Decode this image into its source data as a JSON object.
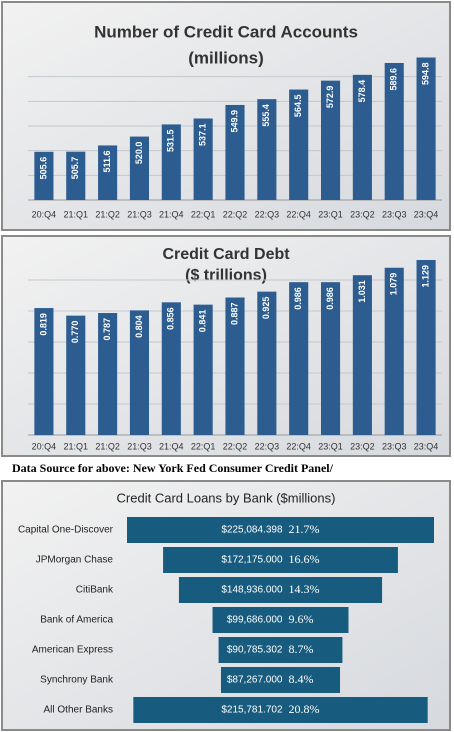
{
  "chart_data": [
    {
      "type": "bar",
      "title": "Number of Credit Card Accounts",
      "subtitle": "(millions)",
      "categories": [
        "20:Q4",
        "21:Q1",
        "21:Q2",
        "21:Q3",
        "21:Q4",
        "22:Q1",
        "22:Q2",
        "22:Q3",
        "22:Q4",
        "23:Q1",
        "23:Q2",
        "23:Q3",
        "23:Q4"
      ],
      "values": [
        505.6,
        505.7,
        511.6,
        520.0,
        531.5,
        537.1,
        549.9,
        555.4,
        564.5,
        572.9,
        578.4,
        589.6,
        594.8
      ],
      "value_labels": [
        "505.6",
        "505.7",
        "511.6",
        "520.0",
        "531.5",
        "537.1",
        "549.9",
        "555.4",
        "564.5",
        "572.9",
        "578.4",
        "589.6",
        "594.8"
      ],
      "color": "#2d5d90",
      "ylim": [
        460,
        600
      ]
    },
    {
      "type": "bar",
      "title": "Credit Card Debt",
      "subtitle": "($ trillions)",
      "categories": [
        "20:Q4",
        "21:Q1",
        "21:Q2",
        "21:Q3",
        "21:Q4",
        "22:Q1",
        "22:Q2",
        "22:Q3",
        "22:Q4",
        "23:Q1",
        "23:Q2",
        "23:Q3",
        "23:Q4"
      ],
      "values": [
        0.819,
        0.77,
        0.787,
        0.804,
        0.856,
        0.841,
        0.887,
        0.925,
        0.986,
        0.986,
        1.031,
        1.079,
        1.129
      ],
      "value_labels": [
        "0.819",
        "0.770",
        "0.787",
        "0.804",
        "0.856",
        "0.841",
        "0.887",
        "0.925",
        "0.986",
        "0.986",
        "1.031",
        "1.079",
        "1.129"
      ],
      "color": "#2d5d90",
      "ylim": [
        0,
        1.2
      ]
    },
    {
      "type": "funnel",
      "title": "Credit Card Loans by Bank ($millions)",
      "categories": [
        "Capital One-Discover",
        "JPMorgan Chase",
        "CitiBank",
        "Bank of America",
        "American Express",
        "Synchrony Bank",
        "All Other Banks"
      ],
      "values": [
        225084.398,
        172175.0,
        148936.0,
        99686.0,
        90785.302,
        87267.0,
        215781.702
      ],
      "value_labels": [
        "$225,084.398",
        "$172,175.000",
        "$148,936.000",
        "$99,686.000",
        "$90,785.302",
        "$87,267.000",
        "$215,781.702"
      ],
      "shares": [
        21.7,
        16.6,
        14.3,
        9.6,
        8.7,
        8.4,
        20.8
      ],
      "share_labels": [
        "21.7%",
        "16.6%",
        "14.3%",
        "9.6%",
        "8.7%",
        "8.4%",
        "20.8%"
      ],
      "color": "#175b7e"
    }
  ],
  "source_note": "Data Source for above: New York Fed Consumer Credit Panel/"
}
